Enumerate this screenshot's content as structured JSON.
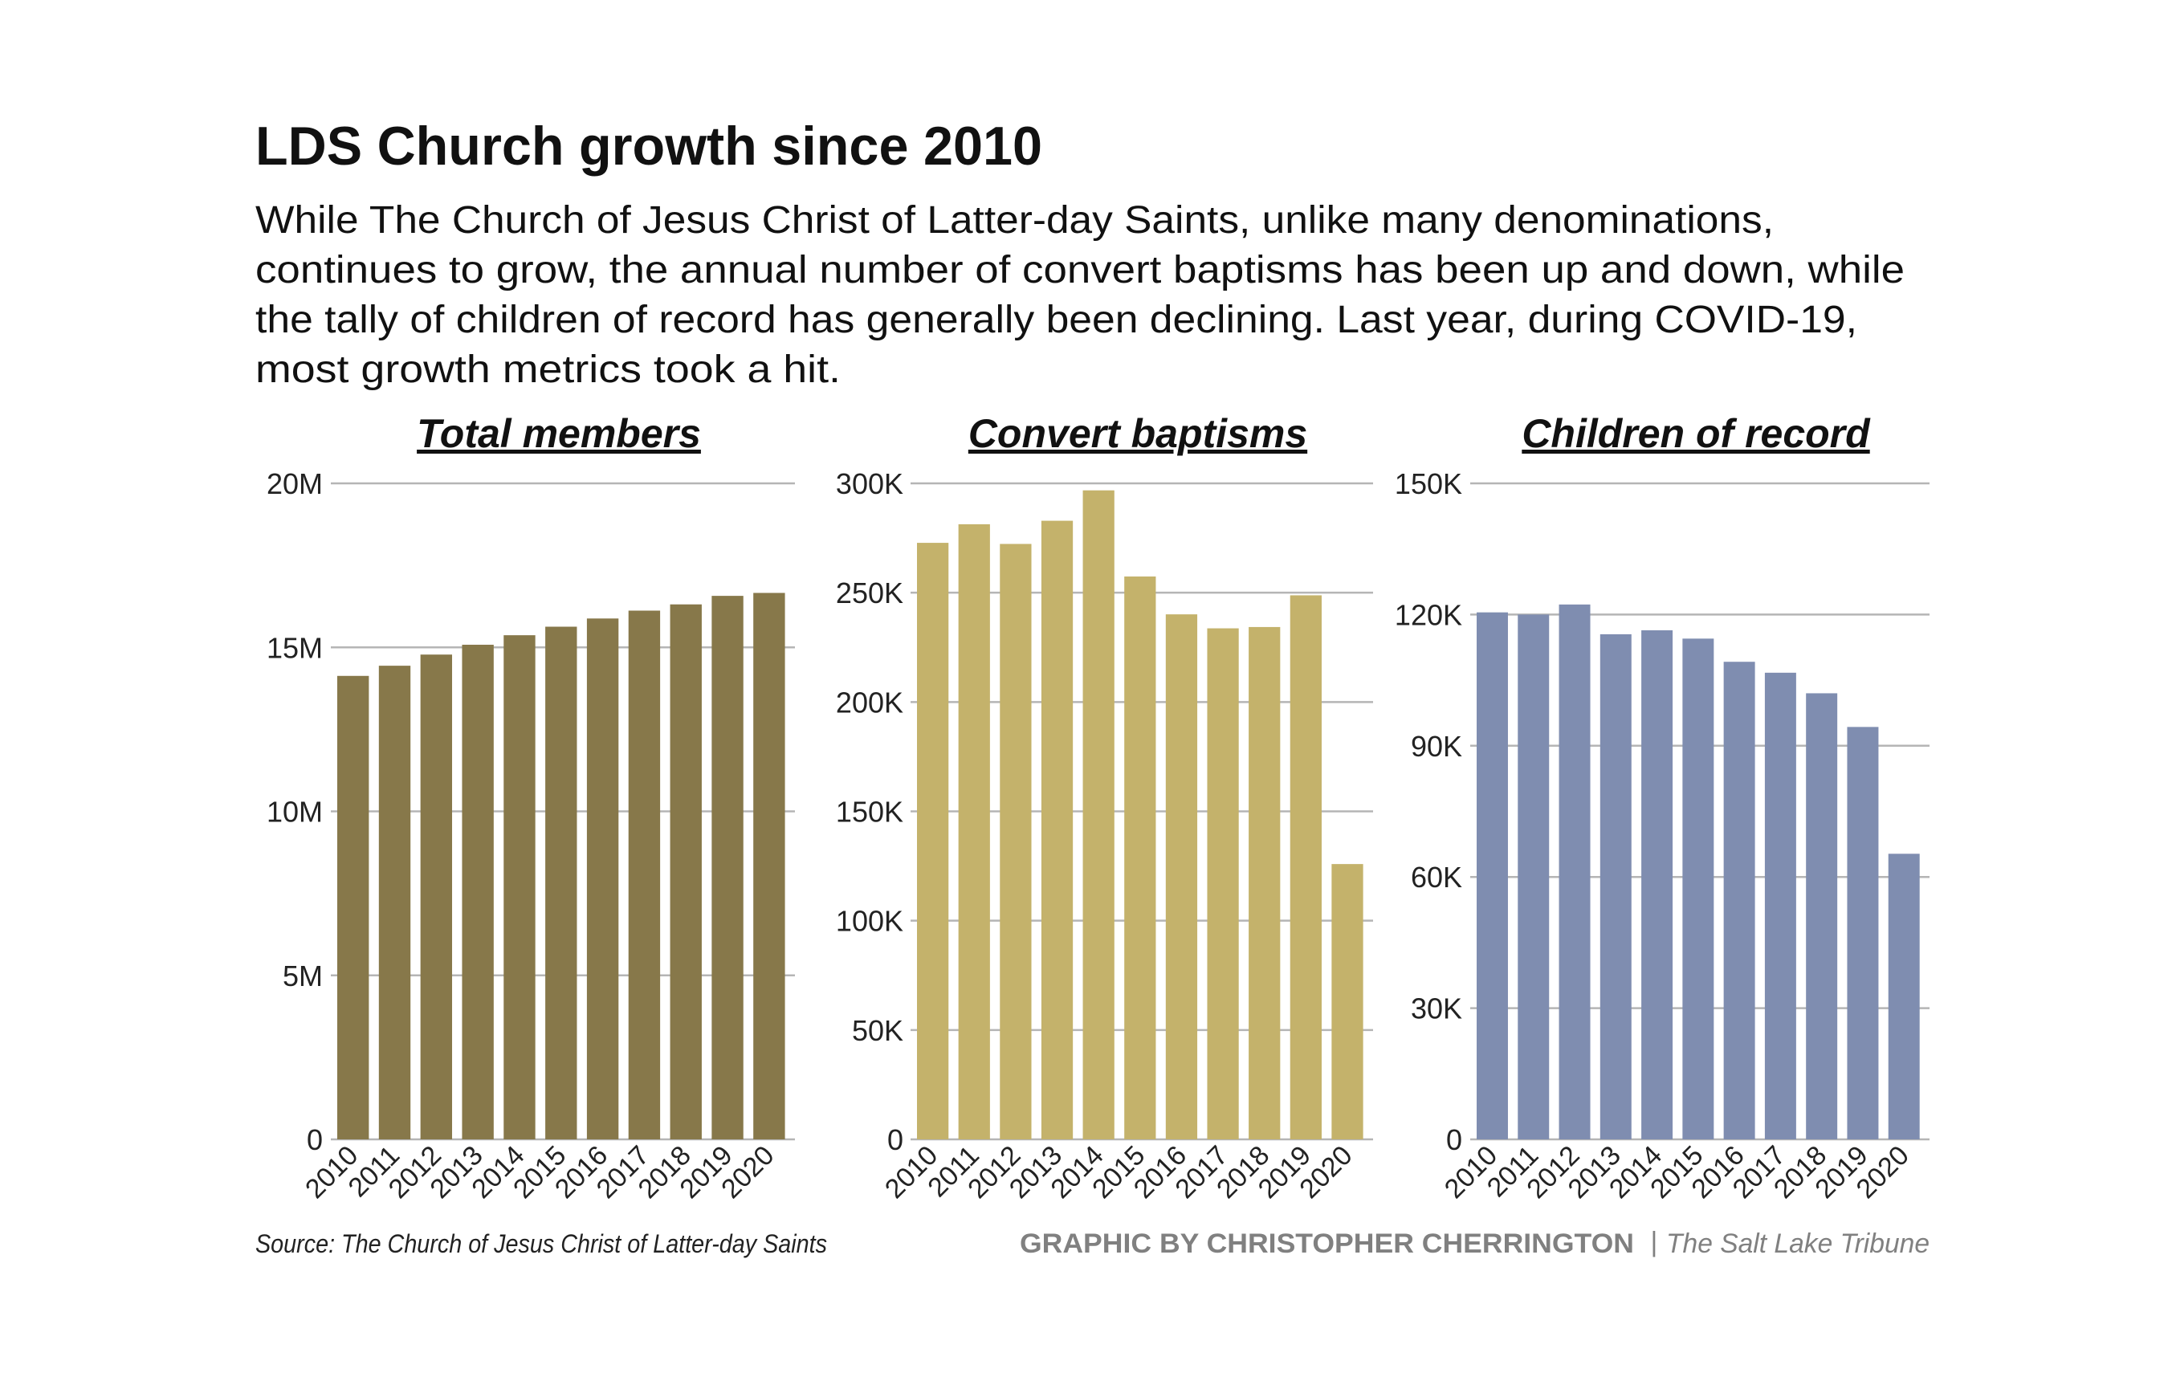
{
  "title": "LDS Church growth since 2010",
  "description_lines": [
    "While The Church of Jesus Christ of Latter-day Saints, unlike many denominations,",
    "continues to grow, the annual number of convert baptisms has been up and down, while",
    "the tally of children of record has generally been declining. Last year, during COVID-19,",
    "most growth metrics took a hit."
  ],
  "footer": {
    "source": "Source: The Church of Jesus Christ of Latter-day Saints",
    "credit": "GRAPHIC BY CHRISTOPHER CHERRINGTON",
    "separator": "|",
    "publication": "The Salt Lake Tribune"
  },
  "chart_data": [
    {
      "type": "bar",
      "title": "Total members",
      "color": "#87784a",
      "categories": [
        "2010",
        "2011",
        "2012",
        "2013",
        "2014",
        "2015",
        "2016",
        "2017",
        "2018",
        "2019",
        "2020"
      ],
      "values": [
        14130000,
        14440000,
        14780000,
        15080000,
        15370000,
        15630000,
        15880000,
        16120000,
        16310000,
        16570000,
        16660000
      ],
      "ylim": [
        0,
        20000000
      ],
      "yticks": [
        0,
        5000000,
        10000000,
        15000000,
        20000000
      ],
      "ytick_labels": [
        "0",
        "5M",
        "10M",
        "15M",
        "20M"
      ],
      "grid": true
    },
    {
      "type": "bar",
      "title": "Convert baptisms",
      "color": "#c4b26b",
      "categories": [
        "2010",
        "2011",
        "2012",
        "2013",
        "2014",
        "2015",
        "2016",
        "2017",
        "2018",
        "2019",
        "2020"
      ],
      "values": [
        272800,
        281300,
        272300,
        282900,
        296800,
        257400,
        240100,
        233700,
        234300,
        248800,
        125900
      ],
      "ylim": [
        0,
        300000
      ],
      "yticks": [
        0,
        50000,
        100000,
        150000,
        200000,
        250000,
        300000
      ],
      "ytick_labels": [
        "0",
        "50K",
        "100K",
        "150K",
        "200K",
        "250K",
        "300K"
      ],
      "grid": true
    },
    {
      "type": "bar",
      "title": "Children of record",
      "color": "#7f8db0",
      "categories": [
        "2010",
        "2011",
        "2012",
        "2013",
        "2014",
        "2015",
        "2016",
        "2017",
        "2018",
        "2019",
        "2020"
      ],
      "values": [
        120500,
        120000,
        122300,
        115500,
        116400,
        114500,
        109200,
        106700,
        102000,
        94300,
        65300
      ],
      "ylim": [
        0,
        150000
      ],
      "yticks": [
        0,
        30000,
        60000,
        90000,
        120000,
        150000
      ],
      "ytick_labels": [
        "0",
        "30K",
        "60K",
        "90K",
        "120K",
        "150K"
      ],
      "grid": true
    }
  ]
}
